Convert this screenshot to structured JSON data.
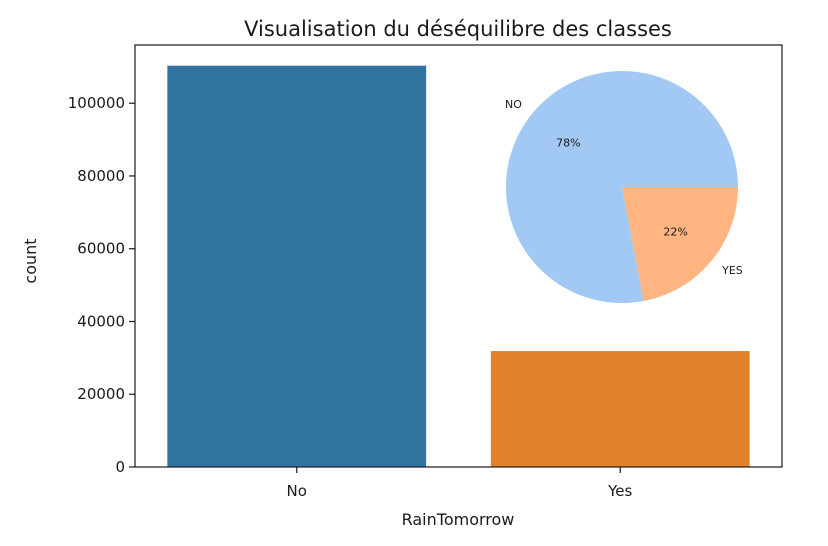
{
  "chart_data": [
    {
      "type": "bar",
      "title": "Visualisation du déséquilibre des classes",
      "xlabel": "RainTomorrow",
      "ylabel": "count",
      "categories": [
        "No",
        "Yes"
      ],
      "values": [
        110316,
        31877
      ],
      "colors": [
        "#3274a1",
        "#e1812c"
      ],
      "ylim": [
        0,
        116000
      ],
      "yticks": [
        0,
        20000,
        40000,
        60000,
        80000,
        100000
      ],
      "ytick_labels": [
        "0",
        "20000",
        "40000",
        "60000",
        "80000",
        "100000"
      ],
      "grid": false
    },
    {
      "type": "pie",
      "labels": [
        "NO",
        "YES"
      ],
      "values": [
        78,
        22
      ],
      "percent_labels": [
        "78%",
        "22%"
      ],
      "colors": [
        "#a1c9f4",
        "#ffb482"
      ],
      "start_angle": 0
    }
  ]
}
